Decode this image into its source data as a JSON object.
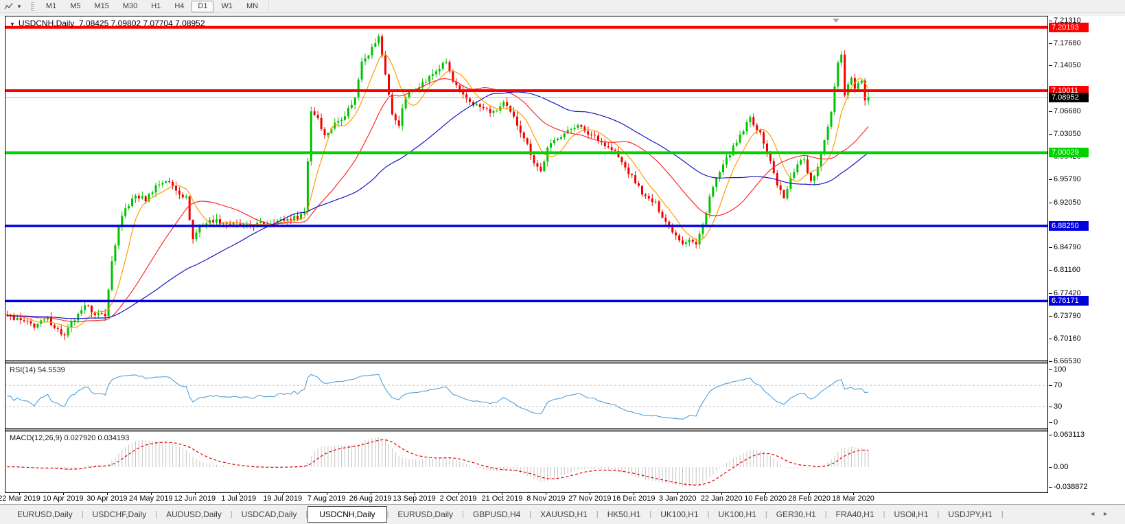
{
  "toolbar": {
    "indicators_icon": "zigzag-chart-icon",
    "dropdown_caret": "▼",
    "timeframes": [
      "M1",
      "M5",
      "M15",
      "M30",
      "H1",
      "H4",
      "D1",
      "W1",
      "MN"
    ],
    "active_timeframe": "D1"
  },
  "chart": {
    "title": {
      "collapse_glyph": "▼",
      "symbol": "USDCNH,Daily",
      "open": "7.08425",
      "high": "7.09802",
      "low": "7.07704",
      "close": "7.08952"
    }
  },
  "rsi_panel": {
    "name": "RSI(14)",
    "value": "54.5539",
    "axis_labels": [
      "100",
      "70",
      "30",
      "0"
    ],
    "guide_levels": [
      70,
      30
    ],
    "line_color": "#4fa0da"
  },
  "macd_panel": {
    "name": "MACD(12,26,9)",
    "value": "0.027920",
    "signal": "0.034193",
    "axis_labels": [
      "0.063113",
      "0.00",
      "-0.038872"
    ],
    "hist_color": "#c4c4c4",
    "signal_color": "#e00000"
  },
  "tabs": {
    "items": [
      "EURUSD,Daily",
      "USDCHF,Daily",
      "AUDUSD,Daily",
      "USDCAD,Daily",
      "USDCNH,Daily",
      "EURUSD,Daily",
      "GBPUSD,H4",
      "XAUUSD,H1",
      "HK50,H1",
      "UK100,H1",
      "UK100,H1",
      "GER30,H1",
      "FRA40,H1",
      "USOil,H1",
      "USDJPY,H1"
    ],
    "active_index": 4,
    "scroll_left": "◄",
    "scroll_right": "►"
  },
  "chart_data": {
    "type": "candlestick",
    "symbol": "USDCNH",
    "timeframe": "Daily",
    "bars": 256,
    "ohlc_current": {
      "open": 7.08425,
      "high": 7.09802,
      "low": 7.07704,
      "close": 7.08952
    },
    "price_range": {
      "top": 7.2205,
      "bottom": 6.6653
    },
    "y_axis_ticks": [
      "7.21310",
      "7.17680",
      "7.14050",
      "7.06680",
      "7.03050",
      "6.99420",
      "6.95790",
      "6.92050",
      "6.84790",
      "6.81160",
      "6.77420",
      "6.73790",
      "6.70160",
      "6.66530"
    ],
    "x_axis_labels": [
      "22 Mar 2019",
      "10 Apr 2019",
      "30 Apr 2019",
      "24 May 2019",
      "12 Jun 2019",
      "1 Jul 2019",
      "19 Jul 2019",
      "7 Aug 2019",
      "26 Aug 2019",
      "13 Sep 2019",
      "2 Oct 2019",
      "21 Oct 2019",
      "8 Nov 2019",
      "27 Nov 2019",
      "16 Dec 2019",
      "3 Jan 2020",
      "22 Jan 2020",
      "10 Feb 2020",
      "28 Feb 2020",
      "18 Mar 2020"
    ],
    "levels": [
      {
        "label": "7.20193",
        "price": 7.20193,
        "color": "#ff0000",
        "thickness": 4
      },
      {
        "label": "7.10011",
        "price": 7.10011,
        "color": "#ff0000",
        "thickness": 4
      },
      {
        "label": "7.00029",
        "price": 7.00029,
        "color": "#00d400",
        "thickness": 4
      },
      {
        "label": "6.88250",
        "price": 6.8825,
        "color": "#0000e0",
        "thickness": 3.5
      },
      {
        "label": "6.76171",
        "price": 6.76171,
        "color": "#0000e0",
        "thickness": 3.5
      }
    ],
    "current_price_tag": {
      "label": "7.08952",
      "price": 7.08952,
      "line_color": "#b8b8b8",
      "box_color": "#000000"
    },
    "candle_colors": {
      "up": "#00c300",
      "down": "#f40000"
    },
    "moving_averages": [
      {
        "period": 8,
        "color": "#ff9d00"
      },
      {
        "period": 25,
        "color": "#ff2a2a"
      },
      {
        "period": 55,
        "color": "#1515c8"
      }
    ],
    "indicators": [
      {
        "name": "RSI",
        "params": "14",
        "current": 54.5539
      },
      {
        "name": "MACD",
        "params": "12,26,9",
        "current": 0.02792,
        "signal": 0.034193,
        "axis_max": 0.063113,
        "axis_min": -0.038872
      }
    ],
    "close_anchors": [
      [
        0,
        6.738
      ],
      [
        4,
        6.73
      ],
      [
        8,
        6.722
      ],
      [
        12,
        6.733
      ],
      [
        15,
        6.715
      ],
      [
        17,
        6.705
      ],
      [
        19,
        6.726
      ],
      [
        22,
        6.744
      ],
      [
        24,
        6.758
      ],
      [
        26,
        6.737
      ],
      [
        29,
        6.741
      ],
      [
        30,
        6.778
      ],
      [
        31,
        6.826
      ],
      [
        33,
        6.88
      ],
      [
        35,
        6.91
      ],
      [
        38,
        6.931
      ],
      [
        41,
        6.925
      ],
      [
        44,
        6.947
      ],
      [
        47,
        6.956
      ],
      [
        50,
        6.941
      ],
      [
        53,
        6.927
      ],
      [
        54,
        6.895
      ],
      [
        55,
        6.861
      ],
      [
        57,
        6.883
      ],
      [
        61,
        6.892
      ],
      [
        66,
        6.886
      ],
      [
        71,
        6.882
      ],
      [
        76,
        6.887
      ],
      [
        81,
        6.891
      ],
      [
        86,
        6.897
      ],
      [
        88,
        6.906
      ],
      [
        89,
        6.988
      ],
      [
        90,
        7.068
      ],
      [
        92,
        7.057
      ],
      [
        94,
        7.027
      ],
      [
        97,
        7.047
      ],
      [
        100,
        7.062
      ],
      [
        103,
        7.088
      ],
      [
        105,
        7.15
      ],
      [
        107,
        7.16
      ],
      [
        110,
        7.186
      ],
      [
        112,
        7.128
      ],
      [
        114,
        7.06
      ],
      [
        116,
        7.047
      ],
      [
        118,
        7.09
      ],
      [
        121,
        7.106
      ],
      [
        124,
        7.116
      ],
      [
        127,
        7.132
      ],
      [
        130,
        7.146
      ],
      [
        132,
        7.114
      ],
      [
        135,
        7.091
      ],
      [
        138,
        7.079
      ],
      [
        141,
        7.071
      ],
      [
        144,
        7.064
      ],
      [
        147,
        7.08
      ],
      [
        150,
        7.056
      ],
      [
        153,
        7.026
      ],
      [
        156,
        6.986
      ],
      [
        158,
        6.97
      ],
      [
        160,
        7.006
      ],
      [
        163,
        7.026
      ],
      [
        166,
        7.034
      ],
      [
        169,
        7.048
      ],
      [
        171,
        7.032
      ],
      [
        174,
        7.028
      ],
      [
        177,
        7.012
      ],
      [
        180,
        7.001
      ],
      [
        183,
        6.976
      ],
      [
        186,
        6.953
      ],
      [
        189,
        6.928
      ],
      [
        192,
        6.918
      ],
      [
        195,
        6.89
      ],
      [
        198,
        6.868
      ],
      [
        200,
        6.856
      ],
      [
        202,
        6.862
      ],
      [
        204,
        6.852
      ],
      [
        206,
        6.884
      ],
      [
        208,
        6.93
      ],
      [
        210,
        6.958
      ],
      [
        212,
        6.978
      ],
      [
        214,
        7.0
      ],
      [
        216,
        7.016
      ],
      [
        218,
        7.036
      ],
      [
        220,
        7.056
      ],
      [
        222,
        7.04
      ],
      [
        224,
        7.018
      ],
      [
        226,
        6.985
      ],
      [
        228,
        6.95
      ],
      [
        230,
        6.926
      ],
      [
        232,
        6.958
      ],
      [
        234,
        6.984
      ],
      [
        236,
        6.99
      ],
      [
        238,
        6.952
      ],
      [
        240,
        6.976
      ],
      [
        242,
        7.02
      ],
      [
        244,
        7.068
      ],
      [
        246,
        7.148
      ],
      [
        247,
        7.158
      ],
      [
        248,
        7.095
      ],
      [
        250,
        7.124
      ],
      [
        251,
        7.103
      ],
      [
        253,
        7.118
      ],
      [
        254,
        7.098
      ],
      [
        255,
        7.0895
      ]
    ]
  }
}
